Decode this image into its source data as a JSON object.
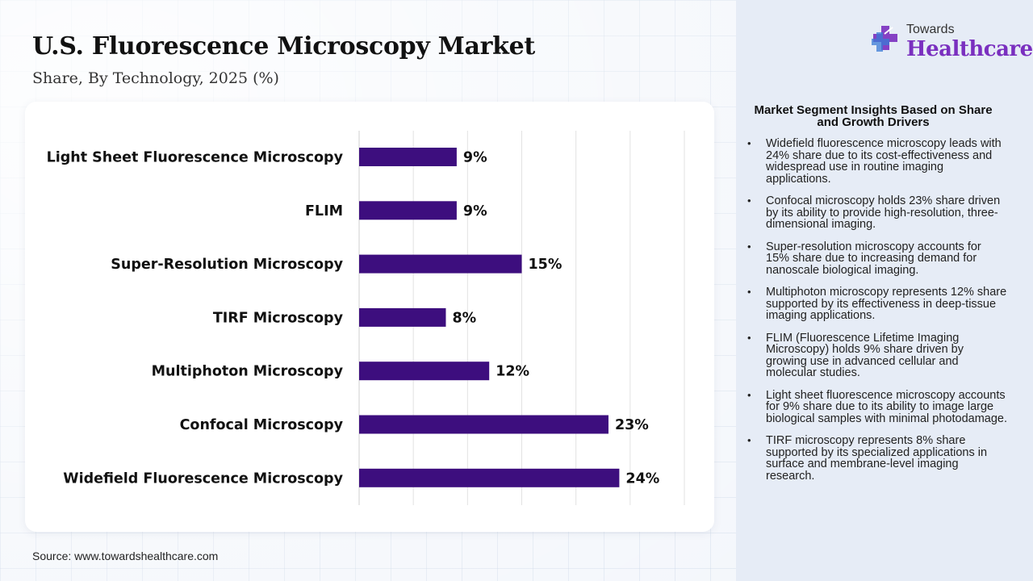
{
  "header": {
    "title": "U.S. Fluorescence Microscopy Market",
    "subtitle": "Share, By Technology, 2025 (%)"
  },
  "brand": {
    "name_line1": "Towards",
    "name_line2": "Healthcare",
    "accent_color": "#7a2fbf"
  },
  "chart_data": {
    "type": "bar",
    "orientation": "horizontal",
    "categories": [
      "Light Sheet Fluorescence Microscopy",
      "FLIM",
      "Super-Resolution Microscopy",
      "TIRF Microscopy",
      "Multiphoton Microscopy",
      "Confocal Microscopy",
      "Widefield Fluorescence Microscopy"
    ],
    "values": [
      9,
      9,
      15,
      8,
      12,
      23,
      24
    ],
    "value_suffix": "%",
    "xlim": [
      0,
      30
    ],
    "grid": true,
    "bar_color": "#3d0e7e"
  },
  "insights": {
    "title": "Market Segment Insights Based on Share and Growth Drivers",
    "items": [
      "Widefield fluorescence microscopy leads with 24% share due to its cost-effectiveness and widespread use in routine imaging applications.",
      "Confocal microscopy holds 23% share driven by its ability to provide high-resolution, three-dimensional imaging.",
      "Super-resolution microscopy accounts for 15% share due to increasing demand for nanoscale biological imaging.",
      "Multiphoton microscopy represents 12% share supported by its effectiveness in deep-tissue imaging applications.",
      "FLIM (Fluorescence Lifetime Imaging Microscopy) holds 9% share driven by growing use in advanced cellular and molecular studies.",
      "Light sheet fluorescence microscopy accounts for 9% share due to its ability to image large biological samples with minimal photodamage.",
      "TIRF microscopy represents 8% share supported by its specialized applications in surface and membrane-level imaging research."
    ]
  },
  "footer": {
    "source": "Source: www.towardshealthcare.com"
  }
}
